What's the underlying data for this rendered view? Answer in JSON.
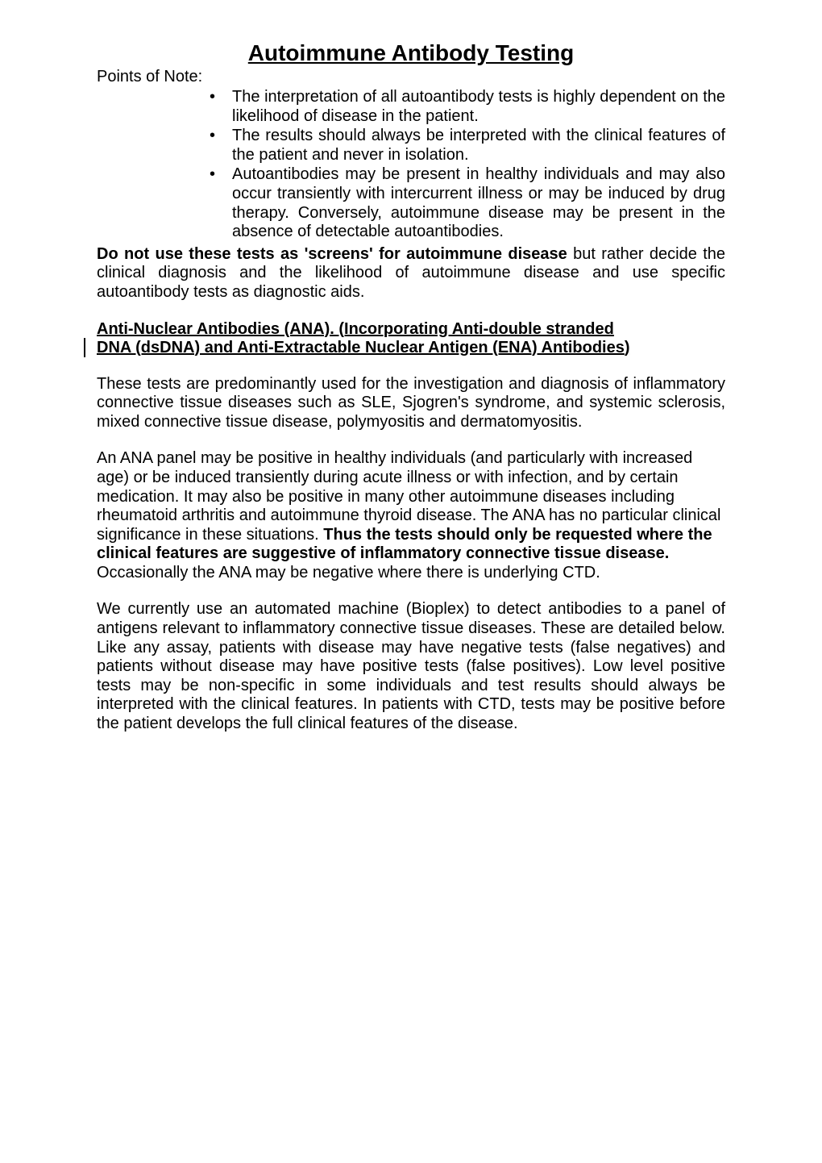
{
  "title": "Autoimmune Antibody Testing",
  "points_label": "Points of Note:",
  "bullets": [
    "The interpretation of all autoantibody tests is highly dependent on the likelihood of disease in the patient.",
    "The results should always be interpreted with the clinical features of the patient and never in isolation.",
    "Autoantibodies may be present in healthy individuals and may also occur transiently with intercurrent illness or may be induced by drug therapy. Conversely, autoimmune disease may be present in the absence of detectable autoantibodies."
  ],
  "warn_bold": "Do not use these tests as 'screens' for autoimmune disease",
  "warn_rest": " but rather decide the clinical diagnosis and the likelihood of autoimmune disease and use specific autoantibody tests as diagnostic aids.",
  "section_head_l1": "Anti-Nuclear Antibodies (ANA). (Incorporating Anti-double stranded",
  "section_head_l2a": "DNA (dsDNA) and Anti-Extractable Nuclear Antigen (ENA) Antibodies",
  "section_head_l2b": ")",
  "p1": "These tests are predominantly used for the investigation and diagnosis of inflammatory connective tissue diseases such as SLE, Sjogren's syndrome, and systemic sclerosis, mixed connective tissue disease, polymyositis and dermatomyositis.",
  "p2_a": "An ANA panel may be positive in healthy individuals (and particularly with increased age) or be induced transiently during acute illness or with infection, and by certain medication. It may also be positive in many other autoimmune diseases including rheumatoid arthritis and autoimmune thyroid disease. The ANA has no particular clinical significance in these situations. ",
  "p2_bold": "Thus the tests should only be requested where the clinical features are suggestive of inflammatory connective tissue disease.",
  "p2_b": " Occasionally the ANA may be negative where there is underlying CTD.",
  "p3": "We currently use an automated machine (Bioplex) to detect antibodies to a panel of antigens relevant to inflammatory connective tissue diseases. These are detailed below. Like any assay, patients with disease may have negative tests (false negatives) and patients without disease may have positive tests (false positives). Low level positive tests may be non-specific in some individuals and test results should always be interpreted with the clinical features. In patients with CTD, tests may be positive before the patient develops the full clinical features of the disease."
}
